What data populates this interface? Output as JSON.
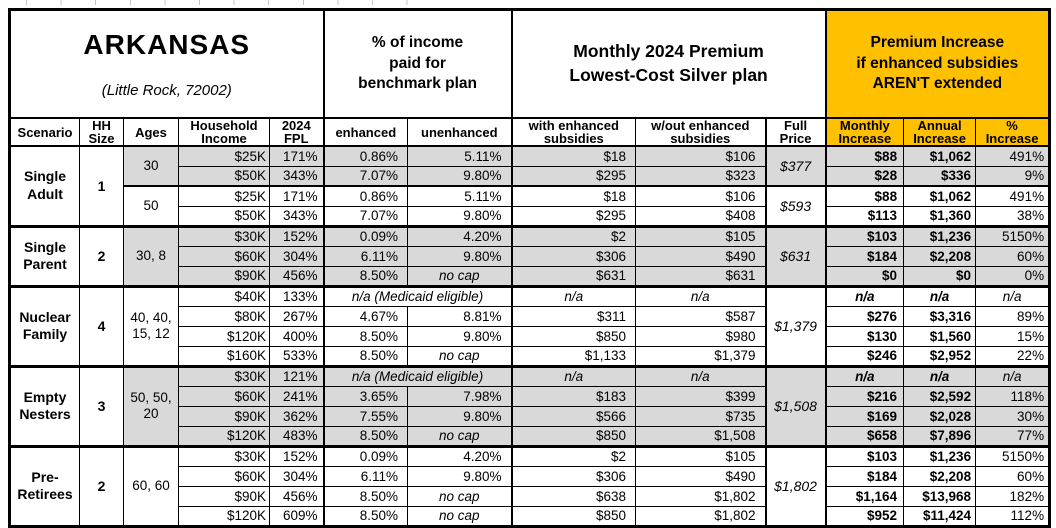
{
  "table": {
    "title": "ARKANSAS",
    "subtitle": "(Little Rock, 72002)",
    "group_headers": [
      "% of income\npaid for\nbenchmark plan",
      "Monthly 2024 Premium\nLowest-Cost Silver plan",
      "Premium Increase\nif enhanced subsidies\nAREN'T extended"
    ],
    "columns": [
      "Scenario",
      "HH\nSize",
      "Ages",
      "Household\nIncome",
      "2024\nFPL",
      "enhanced",
      "unenhanced",
      "with enhanced\nsubsidies",
      "w/out enhanced\nsubsidies",
      "Full\nPrice",
      "Monthly\nIncrease",
      "Annual\nIncrease",
      "%\nIncrease"
    ],
    "colors": {
      "accent_orange": "#FFC000",
      "row_shade_gray": "#D9D9D9",
      "border_black": "#000000"
    },
    "body": [
      {
        "cells": [
          {
            "t": "Single\nAdult",
            "c": "sc",
            "rs": 4
          },
          {
            "t": "1",
            "c": "hh",
            "rs": 4
          },
          {
            "t": "30",
            "c": "ag g",
            "rs": 2
          },
          {
            "t": "$25K",
            "c": "in g"
          },
          {
            "t": "171%",
            "c": "fp g"
          },
          {
            "t": "0.86%",
            "c": "en g l2"
          },
          {
            "t": "5.11%",
            "c": "un g"
          },
          {
            "t": "$18",
            "c": "pw g l2"
          },
          {
            "t": "$106",
            "c": "pwo g"
          },
          {
            "t": "$377",
            "c": "fpr g l2",
            "rs": 2
          },
          {
            "t": "$88",
            "c": "mi g l2"
          },
          {
            "t": "$1,062",
            "c": "ai g"
          },
          {
            "t": "491%",
            "c": "pi g"
          }
        ]
      },
      {
        "cells": [
          {
            "t": "$50K",
            "c": "in g"
          },
          {
            "t": "343%",
            "c": "fp g"
          },
          {
            "t": "7.07%",
            "c": "en g l2"
          },
          {
            "t": "9.80%",
            "c": "un g"
          },
          {
            "t": "$295",
            "c": "pw g l2"
          },
          {
            "t": "$323",
            "c": "pwo g"
          },
          {
            "t": "$28",
            "c": "mi g l2"
          },
          {
            "t": "$336",
            "c": "ai g"
          },
          {
            "t": "9%",
            "c": "pi g"
          }
        ]
      },
      {
        "cells": [
          {
            "t": "50",
            "c": "ag t2",
            "rs": 2
          },
          {
            "t": "$25K",
            "c": "in t2"
          },
          {
            "t": "171%",
            "c": "fp t2"
          },
          {
            "t": "0.86%",
            "c": "en t2 l2"
          },
          {
            "t": "5.11%",
            "c": "un t2"
          },
          {
            "t": "$18",
            "c": "pw t2 l2"
          },
          {
            "t": "$106",
            "c": "pwo t2"
          },
          {
            "t": "$593",
            "c": "fpr t2 l2",
            "rs": 2
          },
          {
            "t": "$88",
            "c": "mi t2 l2"
          },
          {
            "t": "$1,062",
            "c": "ai t2"
          },
          {
            "t": "491%",
            "c": "pi t2"
          }
        ]
      },
      {
        "cells": [
          {
            "t": "$50K",
            "c": "in"
          },
          {
            "t": "343%",
            "c": "fp"
          },
          {
            "t": "7.07%",
            "c": "en l2"
          },
          {
            "t": "9.80%",
            "c": "un"
          },
          {
            "t": "$295",
            "c": "pw l2"
          },
          {
            "t": "$408",
            "c": "pwo"
          },
          {
            "t": "$113",
            "c": "mi l2"
          },
          {
            "t": "$1,360",
            "c": "ai"
          },
          {
            "t": "38%",
            "c": "pi"
          }
        ]
      },
      {
        "cells": [
          {
            "t": "Single\nParent",
            "c": "sc t3",
            "rs": 3
          },
          {
            "t": "2",
            "c": "hh t3",
            "rs": 3
          },
          {
            "t": "30, 8",
            "c": "ag g t3",
            "rs": 3
          },
          {
            "t": "$30K",
            "c": "in g t3"
          },
          {
            "t": "152%",
            "c": "fp g t3"
          },
          {
            "t": "0.09%",
            "c": "en g t3 l2"
          },
          {
            "t": "4.20%",
            "c": "un g t3"
          },
          {
            "t": "$2",
            "c": "pw g t3 l2"
          },
          {
            "t": "$105",
            "c": "pwo g t3"
          },
          {
            "t": "$631",
            "c": "fpr g t3 l2",
            "rs": 3
          },
          {
            "t": "$103",
            "c": "mi g t3 l2"
          },
          {
            "t": "$1,236",
            "c": "ai g t3"
          },
          {
            "t": "5150%",
            "c": "pi g t3"
          }
        ]
      },
      {
        "cells": [
          {
            "t": "$60K",
            "c": "in g"
          },
          {
            "t": "304%",
            "c": "fp g"
          },
          {
            "t": "6.11%",
            "c": "en g l2"
          },
          {
            "t": "9.80%",
            "c": "un g"
          },
          {
            "t": "$306",
            "c": "pw g l2"
          },
          {
            "t": "$490",
            "c": "pwo g"
          },
          {
            "t": "$184",
            "c": "mi g l2"
          },
          {
            "t": "$2,208",
            "c": "ai g"
          },
          {
            "t": "60%",
            "c": "pi g"
          }
        ]
      },
      {
        "cells": [
          {
            "t": "$90K",
            "c": "in g"
          },
          {
            "t": "456%",
            "c": "fp g"
          },
          {
            "t": "8.50%",
            "c": "en g l2"
          },
          {
            "t": "no cap",
            "c": "un g it"
          },
          {
            "t": "$631",
            "c": "pw g l2"
          },
          {
            "t": "$631",
            "c": "pwo g"
          },
          {
            "t": "$0",
            "c": "mi g l2"
          },
          {
            "t": "$0",
            "c": "ai g"
          },
          {
            "t": "0%",
            "c": "pi g"
          }
        ]
      },
      {
        "cells": [
          {
            "t": "Nuclear\nFamily",
            "c": "sc t3",
            "rs": 4
          },
          {
            "t": "4",
            "c": "hh t3",
            "rs": 4
          },
          {
            "t": "40, 40,\n15, 12",
            "c": "ag t3",
            "rs": 4
          },
          {
            "t": "$40K",
            "c": "in t3"
          },
          {
            "t": "133%",
            "c": "fp t3"
          },
          {
            "t": "n/a (Medicaid eligible)",
            "c": "nsp t3 l2",
            "cs": 2
          },
          {
            "t": "n/a",
            "c": "pwna t3 l2"
          },
          {
            "t": "n/a",
            "c": "pwona t3"
          },
          {
            "t": "$1,379",
            "c": "fpr t3 l2",
            "rs": 4
          },
          {
            "t": "n/a",
            "c": "mina t3 l2"
          },
          {
            "t": "n/a",
            "c": "aina t3"
          },
          {
            "t": "n/a",
            "c": "pina t3"
          }
        ]
      },
      {
        "cells": [
          {
            "t": "$80K",
            "c": "in"
          },
          {
            "t": "267%",
            "c": "fp"
          },
          {
            "t": "4.67%",
            "c": "en l2"
          },
          {
            "t": "8.81%",
            "c": "un"
          },
          {
            "t": "$311",
            "c": "pw l2"
          },
          {
            "t": "$587",
            "c": "pwo"
          },
          {
            "t": "$276",
            "c": "mi l2"
          },
          {
            "t": "$3,316",
            "c": "ai"
          },
          {
            "t": "89%",
            "c": "pi"
          }
        ]
      },
      {
        "cells": [
          {
            "t": "$120K",
            "c": "in"
          },
          {
            "t": "400%",
            "c": "fp"
          },
          {
            "t": "8.50%",
            "c": "en l2"
          },
          {
            "t": "9.80%",
            "c": "un"
          },
          {
            "t": "$850",
            "c": "pw l2"
          },
          {
            "t": "$980",
            "c": "pwo"
          },
          {
            "t": "$130",
            "c": "mi l2"
          },
          {
            "t": "$1,560",
            "c": "ai"
          },
          {
            "t": "15%",
            "c": "pi"
          }
        ]
      },
      {
        "cells": [
          {
            "t": "$160K",
            "c": "in"
          },
          {
            "t": "533%",
            "c": "fp"
          },
          {
            "t": "8.50%",
            "c": "en l2"
          },
          {
            "t": "no cap",
            "c": "un it"
          },
          {
            "t": "$1,133",
            "c": "pw l2"
          },
          {
            "t": "$1,379",
            "c": "pwo"
          },
          {
            "t": "$246",
            "c": "mi l2"
          },
          {
            "t": "$2,952",
            "c": "ai"
          },
          {
            "t": "22%",
            "c": "pi"
          }
        ]
      },
      {
        "cells": [
          {
            "t": "Empty\nNesters",
            "c": "sc t3",
            "rs": 4
          },
          {
            "t": "3",
            "c": "hh t3",
            "rs": 4
          },
          {
            "t": "50, 50,\n20",
            "c": "ag g t3",
            "rs": 4
          },
          {
            "t": "$30K",
            "c": "in g t3"
          },
          {
            "t": "121%",
            "c": "fp g t3"
          },
          {
            "t": "n/a (Medicaid eligible)",
            "c": "nsp g t3 l2",
            "cs": 2
          },
          {
            "t": "n/a",
            "c": "pwna g t3 l2"
          },
          {
            "t": "n/a",
            "c": "pwona g t3"
          },
          {
            "t": "$1,508",
            "c": "fpr g t3 l2",
            "rs": 4
          },
          {
            "t": "n/a",
            "c": "mina g t3 l2"
          },
          {
            "t": "n/a",
            "c": "aina g t3"
          },
          {
            "t": "n/a",
            "c": "pina g t3"
          }
        ]
      },
      {
        "cells": [
          {
            "t": "$60K",
            "c": "in g"
          },
          {
            "t": "241%",
            "c": "fp g"
          },
          {
            "t": "3.65%",
            "c": "en g l2"
          },
          {
            "t": "7.98%",
            "c": "un g"
          },
          {
            "t": "$183",
            "c": "pw g l2"
          },
          {
            "t": "$399",
            "c": "pwo g"
          },
          {
            "t": "$216",
            "c": "mi g l2"
          },
          {
            "t": "$2,592",
            "c": "ai g"
          },
          {
            "t": "118%",
            "c": "pi g"
          }
        ]
      },
      {
        "cells": [
          {
            "t": "$90K",
            "c": "in g"
          },
          {
            "t": "362%",
            "c": "fp g"
          },
          {
            "t": "7.55%",
            "c": "en g l2"
          },
          {
            "t": "9.80%",
            "c": "un g"
          },
          {
            "t": "$566",
            "c": "pw g l2"
          },
          {
            "t": "$735",
            "c": "pwo g"
          },
          {
            "t": "$169",
            "c": "mi g l2"
          },
          {
            "t": "$2,028",
            "c": "ai g"
          },
          {
            "t": "30%",
            "c": "pi g"
          }
        ]
      },
      {
        "cells": [
          {
            "t": "$120K",
            "c": "in g"
          },
          {
            "t": "483%",
            "c": "fp g"
          },
          {
            "t": "8.50%",
            "c": "en g l2"
          },
          {
            "t": "no cap",
            "c": "un g it"
          },
          {
            "t": "$850",
            "c": "pw g l2"
          },
          {
            "t": "$1,508",
            "c": "pwo g"
          },
          {
            "t": "$658",
            "c": "mi g l2"
          },
          {
            "t": "$7,896",
            "c": "ai g"
          },
          {
            "t": "77%",
            "c": "pi g"
          }
        ]
      },
      {
        "cells": [
          {
            "t": "Pre-\nRetirees",
            "c": "sc t3",
            "rs": 4
          },
          {
            "t": "2",
            "c": "hh t3",
            "rs": 4
          },
          {
            "t": "60, 60",
            "c": "ag t3",
            "rs": 4
          },
          {
            "t": "$30K",
            "c": "in t3"
          },
          {
            "t": "152%",
            "c": "fp t3"
          },
          {
            "t": "0.09%",
            "c": "en t3 l2"
          },
          {
            "t": "4.20%",
            "c": "un t3"
          },
          {
            "t": "$2",
            "c": "pw t3 l2"
          },
          {
            "t": "$105",
            "c": "pwo t3"
          },
          {
            "t": "$1,802",
            "c": "fpr t3 l2",
            "rs": 4
          },
          {
            "t": "$103",
            "c": "mi t3 l2"
          },
          {
            "t": "$1,236",
            "c": "ai t3"
          },
          {
            "t": "5150%",
            "c": "pi t3"
          }
        ]
      },
      {
        "cells": [
          {
            "t": "$60K",
            "c": "in"
          },
          {
            "t": "304%",
            "c": "fp"
          },
          {
            "t": "6.11%",
            "c": "en l2"
          },
          {
            "t": "9.80%",
            "c": "un"
          },
          {
            "t": "$306",
            "c": "pw l2"
          },
          {
            "t": "$490",
            "c": "pwo"
          },
          {
            "t": "$184",
            "c": "mi l2"
          },
          {
            "t": "$2,208",
            "c": "ai"
          },
          {
            "t": "60%",
            "c": "pi"
          }
        ]
      },
      {
        "cells": [
          {
            "t": "$90K",
            "c": "in"
          },
          {
            "t": "456%",
            "c": "fp"
          },
          {
            "t": "8.50%",
            "c": "en l2"
          },
          {
            "t": "no cap",
            "c": "un it"
          },
          {
            "t": "$638",
            "c": "pw l2"
          },
          {
            "t": "$1,802",
            "c": "pwo"
          },
          {
            "t": "$1,164",
            "c": "mi l2"
          },
          {
            "t": "$13,968",
            "c": "ai"
          },
          {
            "t": "182%",
            "c": "pi"
          }
        ]
      },
      {
        "cells": [
          {
            "t": "$120K",
            "c": "in"
          },
          {
            "t": "609%",
            "c": "fp"
          },
          {
            "t": "8.50%",
            "c": "en l2"
          },
          {
            "t": "no cap",
            "c": "un it"
          },
          {
            "t": "$850",
            "c": "pw l2"
          },
          {
            "t": "$1,802",
            "c": "pwo"
          },
          {
            "t": "$952",
            "c": "mi l2"
          },
          {
            "t": "$11,424",
            "c": "ai"
          },
          {
            "t": "112%",
            "c": "pi"
          }
        ]
      }
    ]
  }
}
